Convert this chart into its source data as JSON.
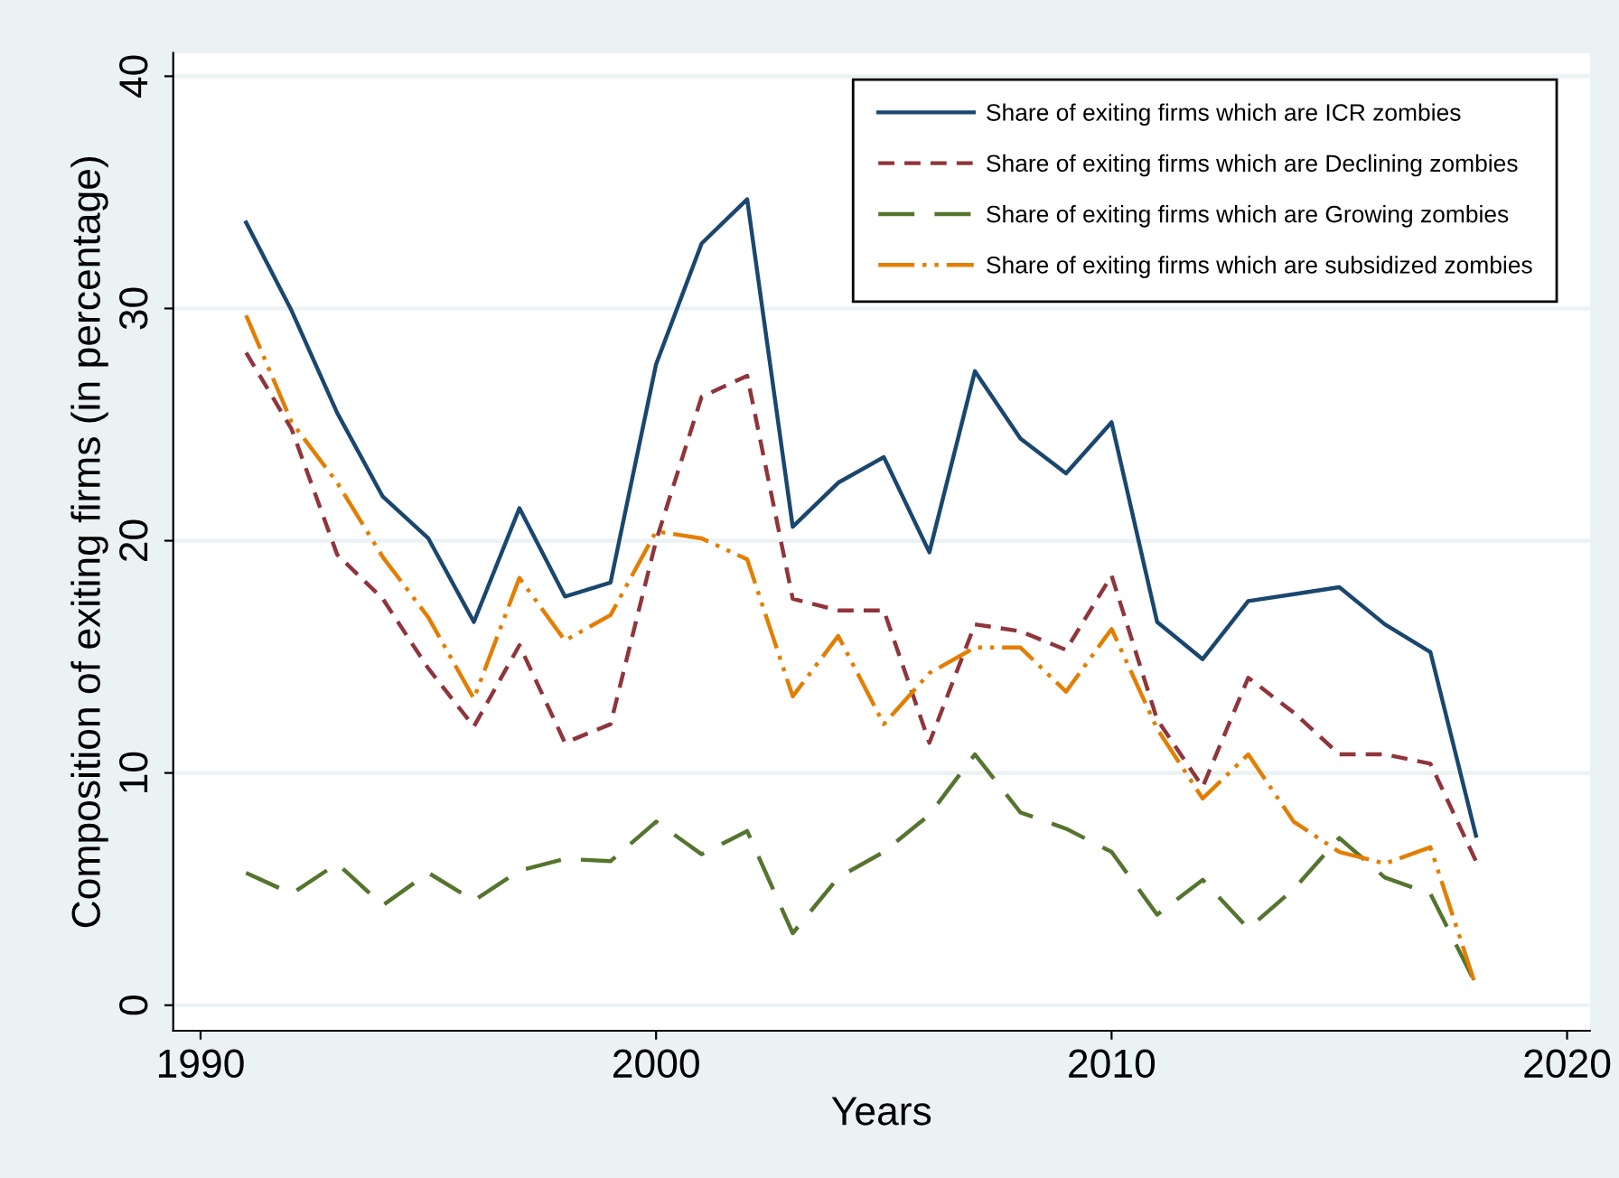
{
  "chart_data": {
    "type": "line",
    "xlabel": "Years",
    "ylabel": "Composition of exiting firms (in percentage)",
    "x": [
      1991,
      1992,
      1993,
      1994,
      1995,
      1996,
      1997,
      1998,
      1999,
      2000,
      2001,
      2002,
      2003,
      2004,
      2005,
      2006,
      2007,
      2008,
      2009,
      2010,
      2011,
      2012,
      2013,
      2014,
      2015,
      2016,
      2017,
      2018
    ],
    "series": [
      {
        "name": "Share of exiting firms which are ICR zombies",
        "color": "#1a476f",
        "line_style": "solid",
        "values": [
          33.7,
          29.9,
          25.5,
          21.9,
          20.1,
          16.5,
          21.4,
          17.6,
          18.2,
          27.6,
          32.8,
          34.7,
          20.6,
          22.5,
          23.6,
          19.5,
          27.3,
          24.4,
          22.9,
          25.1,
          16.5,
          14.9,
          17.4,
          17.7,
          18.0,
          16.4,
          15.2,
          7.3
        ]
      },
      {
        "name": "Share of exiting firms which are Declining zombies",
        "color": "#90353b",
        "line_style": "dashed",
        "values": [
          28.1,
          24.8,
          19.4,
          17.5,
          14.5,
          12.0,
          15.5,
          11.3,
          12.1,
          20.0,
          26.2,
          27.1,
          17.5,
          17.0,
          17.0,
          11.3,
          16.4,
          16.1,
          15.3,
          18.5,
          12.3,
          9.4,
          14.1,
          12.6,
          10.8,
          10.8,
          10.4,
          6.2
        ]
      },
      {
        "name": "Share of exiting firms which are Growing zombies",
        "color": "#55752f",
        "line_style": "dashed",
        "values": [
          5.7,
          4.8,
          6.1,
          4.3,
          5.7,
          4.5,
          5.8,
          6.3,
          6.2,
          7.9,
          6.5,
          7.5,
          3.1,
          5.5,
          6.6,
          8.2,
          10.8,
          8.3,
          7.6,
          6.6,
          3.9,
          5.4,
          3.3,
          5.0,
          7.2,
          5.5,
          4.8,
          0.9
        ]
      },
      {
        "name": "Share of exiting firms which are subsidized zombies",
        "color": "#e37e00",
        "line_style": "dashed",
        "values": [
          29.7,
          25.1,
          22.5,
          19.3,
          16.7,
          13.2,
          18.4,
          15.7,
          16.8,
          20.4,
          20.1,
          19.2,
          13.3,
          15.9,
          12.1,
          14.3,
          15.4,
          15.4,
          13.5,
          16.2,
          11.9,
          8.9,
          10.8,
          7.9,
          6.6,
          6.1,
          6.8,
          0.8
        ]
      }
    ],
    "xlim": [
      1989.4,
      2020.5
    ],
    "xticks": [
      1990,
      2000,
      2010,
      2020
    ],
    "ylim": [
      -1.1,
      41
    ],
    "yticks": [
      0,
      10,
      20,
      30,
      40
    ],
    "grid": "y",
    "legend": "top right",
    "marker": "none"
  }
}
